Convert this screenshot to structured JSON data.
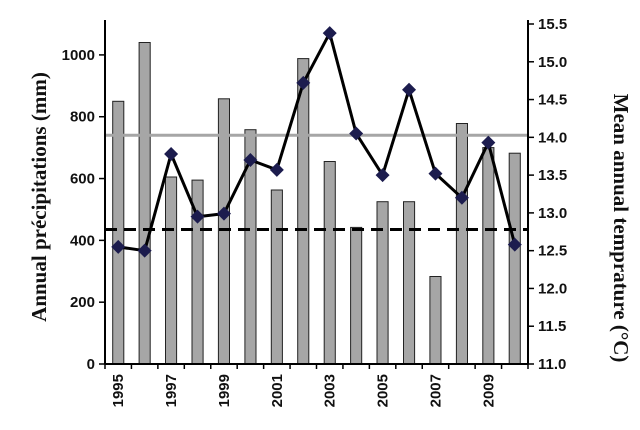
{
  "chart_data": {
    "type": "bar",
    "x": [
      "1995",
      "1996",
      "1997",
      "1998",
      "1999",
      "2000",
      "2001",
      "2002",
      "2003",
      "2004",
      "2005",
      "2006",
      "2007",
      "2008",
      "2009",
      "2010"
    ],
    "x_tick_labels": [
      "1995",
      "1997",
      "1999",
      "2001",
      "2003",
      "2005",
      "2007",
      "2009"
    ],
    "series": [
      {
        "type": "bar",
        "axis": "left",
        "color": "#a6a6a6",
        "values": [
          850,
          1040,
          605,
          595,
          858,
          758,
          563,
          988,
          655,
          442,
          525,
          525,
          283,
          778,
          700,
          682
        ]
      },
      {
        "type": "line",
        "axis": "right",
        "color": "#000000",
        "marker_color": "#1c1c4e",
        "marker": "diamond",
        "values": [
          12.55,
          12.5,
          13.78,
          12.95,
          12.99,
          13.7,
          13.57,
          14.72,
          15.38,
          14.05,
          13.5,
          14.63,
          13.52,
          13.2,
          13.93,
          12.58
        ]
      }
    ],
    "reference_lines": [
      {
        "axis": "left",
        "value": 740,
        "style": "solid",
        "color": "#a6a6a6"
      },
      {
        "axis": "left",
        "value": 435,
        "style": "dashed",
        "color": "#000000"
      }
    ],
    "y_left": {
      "label": "Annual précipitations (mm)",
      "ylim": [
        0,
        1100
      ],
      "ticks": [
        0,
        200,
        400,
        600,
        800,
        1000
      ]
    },
    "y_right": {
      "label": "Mean annual temprature (°C)",
      "ylim": [
        11.0,
        15.5
      ],
      "ticks": [
        "11.0",
        "11.5",
        "12.0",
        "12.5",
        "13.0",
        "13.5",
        "14.0",
        "14.5",
        "15.0",
        "15.5"
      ]
    },
    "grid": false,
    "legend": "none"
  }
}
